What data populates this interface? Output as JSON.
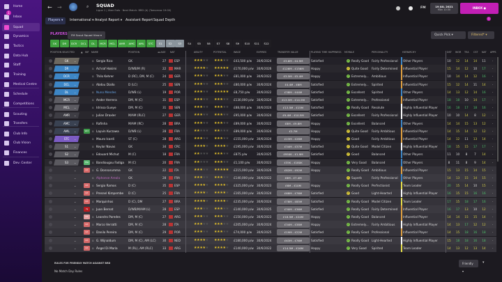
{
  "sidebar": {
    "items": [
      {
        "label": "Home",
        "icon": "home-icon"
      },
      {
        "label": "Inbox",
        "icon": "inbox-icon",
        "badge": "1"
      },
      {
        "label": "Squad",
        "icon": "squad-icon",
        "active": true
      },
      {
        "label": "Dynamics",
        "icon": "dynamics-icon"
      },
      {
        "label": "Tactics",
        "icon": "tactics-icon"
      },
      {
        "label": "Data Hub",
        "icon": "data-hub-icon"
      },
      {
        "label": "Staff",
        "icon": "staff-icon"
      },
      {
        "label": "Training",
        "icon": "training-icon"
      },
      {
        "label": "Medical Centre",
        "icon": "medical-icon"
      },
      {
        "label": "Schedule",
        "icon": "calendar-icon"
      },
      {
        "label": "Competitions",
        "icon": "trophy-icon"
      },
      {
        "label": "Scouting",
        "icon": "scouting-icon"
      },
      {
        "label": "Transfers",
        "icon": "transfers-icon"
      },
      {
        "label": "Club Info",
        "icon": "shield-icon"
      },
      {
        "label": "Club Vision",
        "icon": "briefcase-icon"
      },
      {
        "label": "Finances",
        "icon": "money-icon"
      },
      {
        "label": "Dev. Center",
        "icon": "chart-icon"
      }
    ]
  },
  "header": {
    "title": "SQUAD",
    "subtitle": "Ligue 1 | Uber Eats · Next Match: BRD (A) (Tomorrow 19:00)",
    "nav": [
      "Players ▾",
      "International ▾",
      "Analyst Report ▾",
      "Assistant Report",
      "Squad Depth"
    ],
    "fm_label": "FM",
    "date": "19 JUL 2021",
    "time": "Mon 10:30",
    "inbox_label": "INBOX",
    "notif_badge": "1"
  },
  "players_panel": {
    "label": "PLAYERS",
    "view": "FM Scout Squad View ▾",
    "quick_pick": "Quick Pick ▾",
    "filter": "Filtered* ▾"
  },
  "position_tabs": [
    {
      "l": "GK",
      "s": "g"
    },
    {
      "l": "DR",
      "s": "g"
    },
    {
      "l": "DCR",
      "s": "g"
    },
    {
      "l": "DCL",
      "s": "g"
    },
    {
      "l": "DL",
      "s": "g"
    },
    {
      "l": "MCR",
      "s": "g"
    },
    {
      "l": "MCL",
      "s": "g"
    },
    {
      "l": "AMR",
      "s": "g"
    },
    {
      "l": "AMC",
      "s": "g"
    },
    {
      "l": "AML",
      "s": "g"
    },
    {
      "l": "STC",
      "s": "g"
    },
    {
      "l": "S1",
      "s": "s"
    },
    {
      "l": "S2",
      "s": "s"
    },
    {
      "l": "S3",
      "s": "s"
    },
    {
      "l": "S4",
      "s": "d"
    },
    {
      "l": "S5",
      "s": "d"
    },
    {
      "l": "S6",
      "s": "d"
    },
    {
      "l": "S7",
      "s": "d"
    },
    {
      "l": "S8",
      "s": "d"
    },
    {
      "l": "S9",
      "s": "d"
    },
    {
      "l": "S10",
      "s": "d"
    },
    {
      "l": "S11",
      "s": "d"
    },
    {
      "l": "S12",
      "s": "d"
    }
  ],
  "columns": [
    "Position Selected",
    "▲",
    "Inf",
    "Name",
    "Position",
    "◂◂ Age",
    "Nat",
    "Ability",
    "Potential",
    "Wage",
    "Expires",
    "Transfer Value",
    "Playing Time Happiness",
    "Morale",
    "Personality",
    "Hierarchy",
    "Dst",
    "Wor",
    "Tea",
    "Cst",
    "Nat",
    "Apps"
  ],
  "colors": {
    "accent": "#c21fb5",
    "green_tab": "#3fa33e",
    "gk": "#6d6860",
    "def": "#3d86c6",
    "mid": "#5d5c63",
    "amr": "#3e3d44",
    "amc": "#3a4252",
    "stc": "#7c5cc4",
    "sub": "#5b5a60"
  },
  "players": [
    {
      "ps": "GK",
      "pc": "gk",
      "name": "Sergio Rico",
      "pos": "GK",
      "age": "27",
      "nat": "ESP",
      "ab": 2.5,
      "pot": 2.5,
      "wage": "£43,500 p/w",
      "exp": "30/6/2024",
      "tv": "£3.6M - £4.9M",
      "pt": "Satisfied",
      "mor": "Really Good",
      "pers": "Fairly Professional",
      "hier": "Other Players",
      "st": [
        "10",
        "12",
        "14",
        "14",
        "11",
        "-"
      ]
    },
    {
      "ps": "DR",
      "pc": "def",
      "name": "Achraf Hakimi",
      "pos": "D/WB/M (R)",
      "age": "22",
      "nat": "MAR",
      "ab": 3.5,
      "pot": 4.5,
      "wage": "£170,000 p/w",
      "exp": "30/6/2026",
      "tv": "£126M - £156M",
      "pt": "Happy",
      "mor": "Quite Good",
      "pers": "Fairly Determined",
      "hier": "Influential Player",
      "st": [
        "15",
        "14",
        "12",
        "10",
        "17",
        "-"
      ]
    },
    {
      "ps": "DCR",
      "pc": "def",
      "name": "Thilo Kehrer",
      "pos": "D (RC), DM, M (C)",
      "age": "24",
      "nat": "GER",
      "ab": 2.5,
      "pot": 2.5,
      "wage": "£81,000 p/w",
      "exp": "30/6/2022",
      "tv": "£3.5M - £5.4M",
      "pt": "Happy",
      "mor": "Extremely...",
      "pers": "Ambitious",
      "hier": "Influential Player",
      "st": [
        "10",
        "14",
        "14",
        "12",
        "16",
        "-"
      ]
    },
    {
      "ps": "DCL",
      "pc": "def",
      "name": "Abdou Diallo",
      "pos": "D (LC)",
      "age": "25",
      "nat": "SEN",
      "ab": 2.5,
      "pot": 2.5,
      "wage": "£80,000 p/w",
      "exp": "30/6/2024",
      "tv": "£4.4M - £6M",
      "pt": "Satisfied",
      "mor": "Extremely...",
      "pers": "Spirited",
      "hier": "Influential Player",
      "st": [
        "15",
        "12",
        "14",
        "11",
        "14",
        "-"
      ]
    },
    {
      "ps": "DL",
      "pc": "def",
      "name": "Nuno Mendes",
      "nameColor": "#6aa8e8",
      "pos": "D/WB (L)",
      "age": "19",
      "nat": "POR",
      "ab": 3,
      "pot": 4.5,
      "wage": "£8,750 p/w",
      "exp": "30/6/2022",
      "tv": "£38M - £44M",
      "pt": "Satisfied",
      "mor": "Excellent",
      "pers": "Spirited",
      "hier": "Other Players",
      "st": [
        "14",
        "13",
        "12",
        "14",
        "16",
        "-"
      ]
    },
    {
      "ps": "MCR",
      "pc": "mid",
      "name": "Ander Herrera",
      "pos": "DM, M (C)",
      "age": "31",
      "nat": "ESP",
      "ab": 3,
      "pot": 3,
      "wage": "£130,000 p/w",
      "exp": "30/6/2024",
      "tv": "£13.5M - £14.5M",
      "pt": "Satisfied",
      "mor": "Extremely...",
      "pers": "Professional",
      "hier": "Influential Player",
      "st": [
        "18",
        "18",
        "10",
        "14",
        "17",
        "-"
      ]
    },
    {
      "ps": "MCL",
      "pc": "mid",
      "name": "Idrissa Gueye",
      "pos": "DM, M (C)",
      "age": "31",
      "nat": "SEN",
      "ab": 3,
      "pot": 3,
      "wage": "£88,000 p/w",
      "exp": "30/6/2024",
      "tv": "£13.5M - £15M",
      "pt": "Satisfied",
      "mor": "Really Good",
      "pers": "Resolute",
      "hier": "Highly Influential Player",
      "st": [
        "16",
        "18",
        "17",
        "18",
        "16",
        "-"
      ]
    },
    {
      "ps": "AMR",
      "pc": "amr",
      "name": "Julian Draxler",
      "pos": "M/AM (RLC)",
      "age": "27",
      "nat": "GER",
      "ab": 2.5,
      "pot": 2.5,
      "wage": "£95,000 p/w",
      "exp": "30/6/2024",
      "tv": "£9.4M - £10.5M",
      "pt": "Satisfied",
      "mor": "Excellent",
      "pers": "Fairly Professional",
      "hier": "Highly Influential Player",
      "st": [
        "10",
        "10",
        "14",
        "8",
        "12",
        "-"
      ]
    },
    {
      "ps": "AMC",
      "pc": "amc",
      "name": "Rafinha",
      "pos": "M/AM (RC)",
      "age": "28",
      "nat": "BRA",
      "ab": 2.5,
      "pot": 2.5,
      "wage": "£89,000 p/w",
      "exp": "30/6/2022",
      "tv": "£8M - £9.8M",
      "pt": "Happy",
      "mor": "Excellent",
      "pers": "Balanced",
      "hier": "Other Players",
      "st": [
        "14",
        "14",
        "15",
        "13",
        "12",
        "-"
      ]
    },
    {
      "ps": "AML",
      "pc": "amc",
      "inf": "Wnt",
      "infc": "#3e9b4a",
      "name": "Layvin Kurzawa",
      "pos": "D/WB (L)",
      "age": "28",
      "nat": "FRA",
      "ab": 2,
      "pot": 2,
      "wage": "£89,000 p/w",
      "exp": "30/6/2024",
      "tv": "£2.7M",
      "pt": "Happy",
      "mor": "Quite Good",
      "pers": "Fairly Ambitious",
      "hier": "Influential Player",
      "st": [
        "14",
        "15",
        "14",
        "12",
        "12",
        "-"
      ]
    },
    {
      "ps": "STC",
      "pc": "stc",
      "name": "Mauro Icardi",
      "pos": "ST (C)",
      "age": "28",
      "nat": "ARG",
      "ab": 3,
      "pot": 3,
      "wage": "£155,000 p/w",
      "exp": "30/6/2024",
      "tv": "£23M - £28M",
      "pt": "Happy",
      "mor": "Good",
      "pers": "Fairly Ambitious",
      "hier": "Influential Player",
      "st": [
        "14",
        "12",
        "11",
        "13",
        "14",
        "-"
      ]
    },
    {
      "ps": "S1",
      "pc": "sub",
      "name": "Keylor Navas",
      "pos": "GK",
      "age": "34",
      "nat": "CRC",
      "ab": 4,
      "pot": 4,
      "wage": "£195,000 p/w",
      "exp": "30/6/2024",
      "tv": "£34M - £37M",
      "pt": "Satisfied",
      "mor": "Quite Good",
      "pers": "Model Citizen",
      "hier": "Highly Influential Player",
      "st": [
        "18",
        "15",
        "15",
        "17",
        "17",
        "-"
      ]
    },
    {
      "ps": "S2",
      "pc": "sub",
      "name": "Edouard Michut",
      "pos": "M (C)",
      "age": "18",
      "nat": "FRA",
      "ab": 1.5,
      "pot": 3,
      "wage": "£875 p/w",
      "exp": "30/6/2025",
      "tv": "£950K - £1.9M",
      "pt": "Satisfied",
      "mor": "Good",
      "pers": "Balanced",
      "hier": "Other Players",
      "st": [
        "11",
        "10",
        "8",
        "7",
        "14",
        "-"
      ]
    },
    {
      "ps": "S3",
      "pc": "sub",
      "inf": "Pla",
      "infc": "#5bb872",
      "name": "Bandiougou Fadiga",
      "pos": "M (C)",
      "age": "20",
      "nat": "FRA",
      "ab": 1.5,
      "pot": 3,
      "wage": "£1,100 p/w",
      "exp": "30/6/2023",
      "tv": "£35K - £180K",
      "pt": "Happy",
      "mor": "Very Good",
      "pers": "Balanced",
      "hier": "Other Players",
      "st": [
        "8",
        "11",
        "8",
        "9",
        "14",
        "-"
      ]
    },
    {
      "inf": "Int",
      "infc": "#d86a6a",
      "name": "G. Donnarumma",
      "pos": "GK",
      "age": "22",
      "nat": "ITA",
      "ab": 3,
      "pot": 4.5,
      "wage": "£215,000 p/w",
      "exp": "30/6/2026",
      "tv": "£82M - £92M",
      "pt": "Happy",
      "mor": "Really Good",
      "pers": "Ambitious",
      "hier": "Influential Player",
      "st": [
        "15",
        "13",
        "15",
        "14",
        "15",
        "-"
      ]
    },
    {
      "name": "Alphonse Areola",
      "nameColor": "#c46fc6",
      "pos": "GK",
      "age": "28",
      "nat": "FRA",
      "ab": 2.5,
      "pot": 2.5,
      "wage": "£140,000 p/w",
      "exp": "30/6/2022",
      "tv": "£6M - £7.4M",
      "pt": "",
      "mor": "Superb",
      "pers": "Fairly Professional",
      "hier": "Other Players",
      "st": [
        "14",
        "13",
        "15",
        "14",
        "15",
        "-"
      ]
    },
    {
      "inf": "Int",
      "infc": "#d86a6a",
      "name": "Sergio Ramos",
      "pos": "D (C)",
      "age": "35",
      "nat": "ESP",
      "ab": 4,
      "pot": 4,
      "wage": "£325,000 p/w",
      "exp": "30/6/2023",
      "tv": "£6M - £10M",
      "pt": "Happy",
      "mor": "Really Good",
      "pers": "Perfectionist",
      "hier": "Team Leader",
      "st": [
        "20",
        "15",
        "14",
        "10",
        "15",
        "-"
      ]
    },
    {
      "inf": "Int",
      "infc": "#d86a6a",
      "name": "Presnel Kimpembe",
      "pos": "D (C)",
      "age": "25",
      "nat": "FRA",
      "ab": 3.5,
      "pot": 3.5,
      "wage": "£165,000 p/w",
      "exp": "30/6/2024",
      "tv": "£68M - £76M",
      "pt": "Satisfied",
      "mor": "Good",
      "pers": "Light-Hearted",
      "hier": "Highly Influential Player",
      "st": [
        "16",
        "15",
        "15",
        "16",
        "16",
        "-"
      ]
    },
    {
      "inf": "Int",
      "infc": "#d86a6a",
      "name": "Marquinhos",
      "pos": "D (C), DM",
      "age": "27",
      "nat": "BRA",
      "ab": 3.5,
      "pot": 3.5,
      "wage": "£235,000 p/w",
      "exp": "30/6/2024",
      "tv": "£78M - £85M",
      "pt": "Satisfied",
      "mor": "Really Good",
      "pers": "Model Citizen",
      "hier": "Team Leader",
      "st": [
        "17",
        "15",
        "18",
        "17",
        "16",
        "-"
      ]
    },
    {
      "inf": "Inj",
      "infc": "#b81d22",
      "name": "Juan Bernat",
      "pos": "D/WB/M/AM (L)",
      "age": "28",
      "nat": "ESP",
      "ab": 3,
      "pot": 3,
      "wage": "£140,000 p/w",
      "exp": "30/6/2025",
      "tv": "£30M - £36M",
      "pt": "Satisfied",
      "mor": "Really Good",
      "pers": "Fairly Determined",
      "hier": "Influential Player",
      "st": [
        "16",
        "17",
        "13",
        "10",
        "12",
        "-"
      ]
    },
    {
      "inf": "Int",
      "infc": "#e5a0a0",
      "name": "Leandro Paredes",
      "pos": "DM, M (C)",
      "age": "27",
      "nat": "ARG",
      "ab": 3,
      "pot": 3,
      "wage": "£150,000 p/w",
      "exp": "30/6/2023",
      "tv": "£18.5M - £24M",
      "pt": "Happy",
      "mor": "Really Good",
      "pers": "Balanced",
      "hier": "Influential Player",
      "st": [
        "14",
        "14",
        "15",
        "15",
        "14",
        "-"
      ]
    },
    {
      "inf": "Int",
      "infc": "#d86a6a",
      "name": "Marco Verratti",
      "pos": "DM, M (C)",
      "age": "28",
      "nat": "ITA",
      "ab": 3,
      "pot": 3,
      "wage": "£205,000 p/w",
      "exp": "30/6/2024",
      "tv": "£34M - £38M",
      "pt": "Happy",
      "mor": "Extremely...",
      "pers": "Fairly Ambitious",
      "hier": "Highly Influential Player",
      "st": [
        "14",
        "13",
        "17",
        "12",
        "12",
        "-"
      ]
    },
    {
      "inf": "Int",
      "infc": "#d86a6a",
      "name": "Danilo Pereira",
      "pos": "DM, M (C)",
      "age": "29",
      "nat": "POR",
      "ab": 3,
      "pot": 3,
      "wage": "£74,000 p/w",
      "exp": "30/6/2025",
      "tv": "£19M - £22M",
      "pt": "Satisfied",
      "mor": "Really Good",
      "pers": "Professional",
      "hier": "Influential Player",
      "st": [
        "14",
        "15",
        "18",
        "16",
        "18",
        "-"
      ]
    },
    {
      "inf": "Int",
      "infc": "#d86a6a",
      "name": "G. Wijnaldum",
      "pos": "DM, M (C), AM (LC)",
      "age": "30",
      "nat": "NED",
      "ab": 3.5,
      "pot": 3.5,
      "wage": "£180,000 p/w",
      "exp": "30/6/2024",
      "tv": "£63M - £76M",
      "pt": "Satisfied",
      "mor": "Really Good",
      "pers": "Light-Hearted",
      "hier": "Highly Influential Player",
      "st": [
        "15",
        "18",
        "18",
        "16",
        "18",
        "-"
      ]
    },
    {
      "inf": "Int",
      "infc": "#d86a6a",
      "name": "Ángel Di María",
      "pos": "M (RL), AM (RLC)",
      "age": "33",
      "nat": "ARG",
      "ab": 3.5,
      "pot": 3.5,
      "wage": "£140,000 p/w",
      "exp": "30/6/2022",
      "tv": "£14.5M - £16M",
      "pt": "Happy",
      "mor": "Very Good",
      "pers": "Spirited",
      "hier": "Team Leader",
      "st": [
        "14",
        "13",
        "12",
        "13",
        "14",
        "-"
      ]
    }
  ],
  "footer": {
    "rules_label": "RULES FOR FRIENDLY MATCH AGAINST BRD",
    "rules_value": "No Match Day Rules",
    "match_type": "Friendly ▾"
  }
}
